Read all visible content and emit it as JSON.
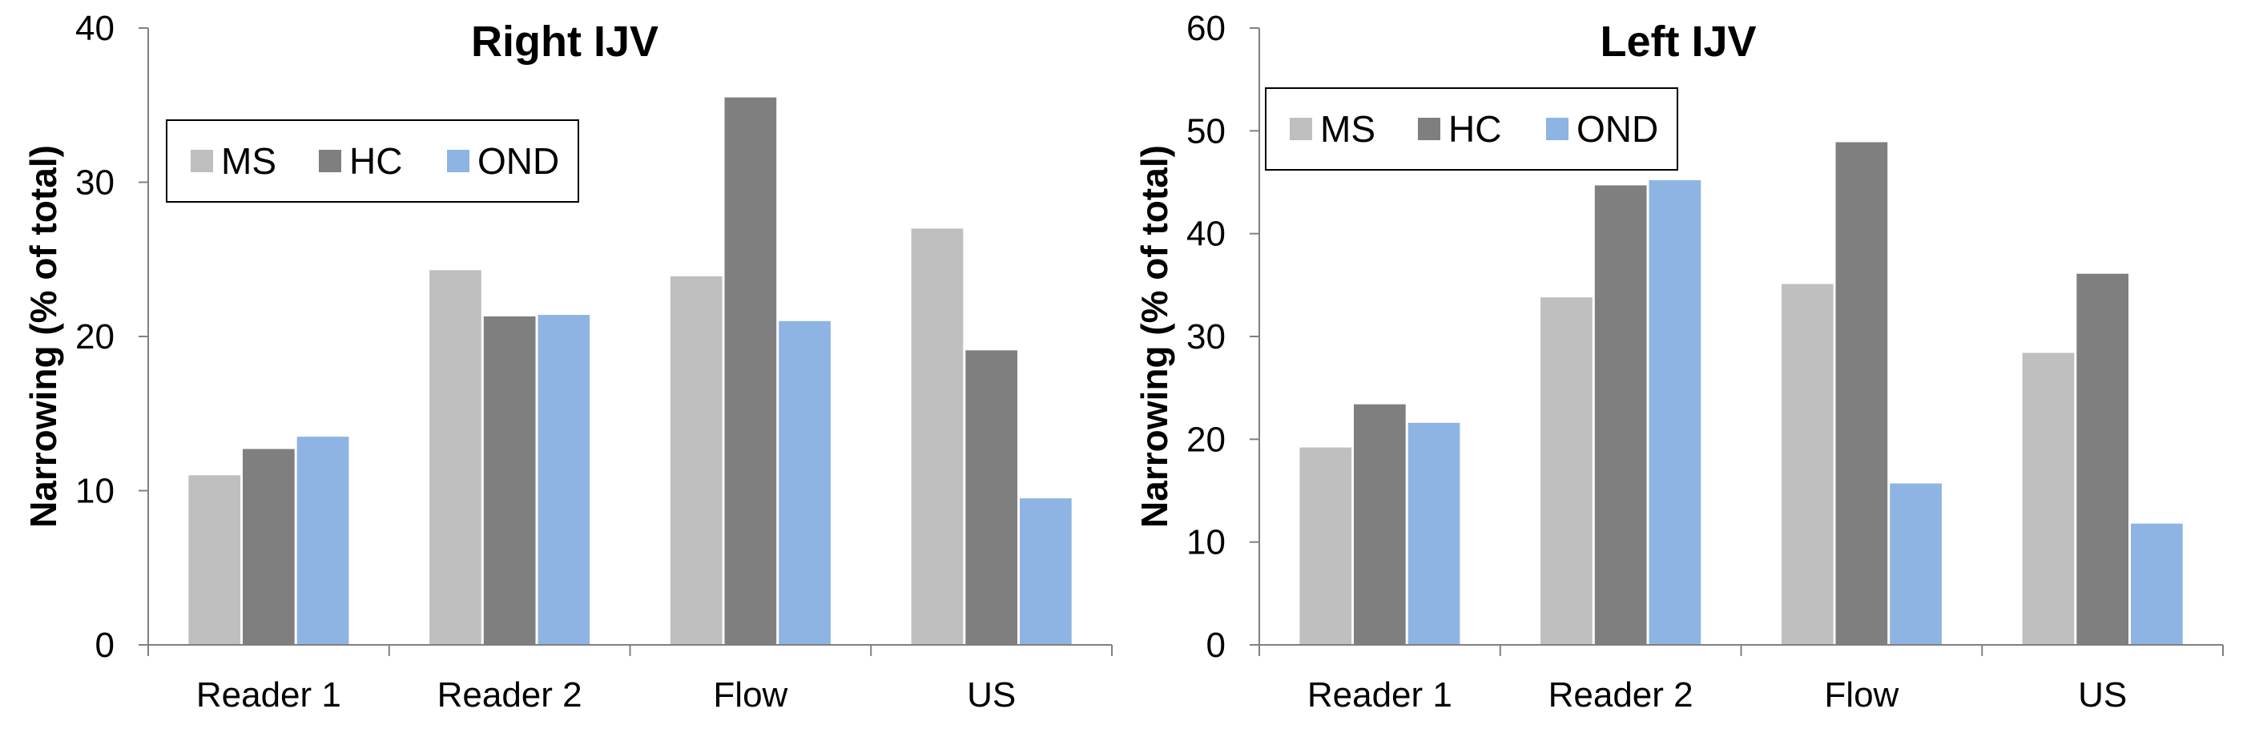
{
  "chart_data": [
    {
      "type": "bar",
      "title": "Right IJV",
      "ylabel": "Narrowing (% of total)",
      "xlabel": "",
      "ylim": [
        0,
        40
      ],
      "yticks": [
        0,
        10,
        20,
        30,
        40
      ],
      "categories": [
        "Reader 1",
        "Reader 2",
        "Flow",
        "US"
      ],
      "legend": "top-left, inside plot, framed",
      "grid": false,
      "series": [
        {
          "name": "MS",
          "color": "#bfbfbf",
          "values": [
            11.0,
            24.3,
            23.9,
            27.0
          ]
        },
        {
          "name": "HC",
          "color": "#7f7f7f",
          "values": [
            12.7,
            21.3,
            35.5,
            19.1
          ]
        },
        {
          "name": "OND",
          "color": "#8eb4e3",
          "values": [
            13.5,
            21.4,
            21.0,
            9.5
          ]
        }
      ]
    },
    {
      "type": "bar",
      "title": "Left IJV",
      "ylabel": "Narrowing (% of total)",
      "xlabel": "",
      "ylim": [
        0,
        60
      ],
      "yticks": [
        0,
        10,
        20,
        30,
        40,
        50,
        60
      ],
      "categories": [
        "Reader 1",
        "Reader 2",
        "Flow",
        "US"
      ],
      "legend": "top-left, inside plot, framed",
      "grid": false,
      "series": [
        {
          "name": "MS",
          "color": "#bfbfbf",
          "values": [
            19.2,
            33.8,
            35.1,
            28.4
          ]
        },
        {
          "name": "HC",
          "color": "#7f7f7f",
          "values": [
            23.4,
            44.7,
            48.9,
            36.1
          ]
        },
        {
          "name": "OND",
          "color": "#8eb4e3",
          "values": [
            21.6,
            45.2,
            15.7,
            11.8
          ]
        }
      ]
    }
  ]
}
